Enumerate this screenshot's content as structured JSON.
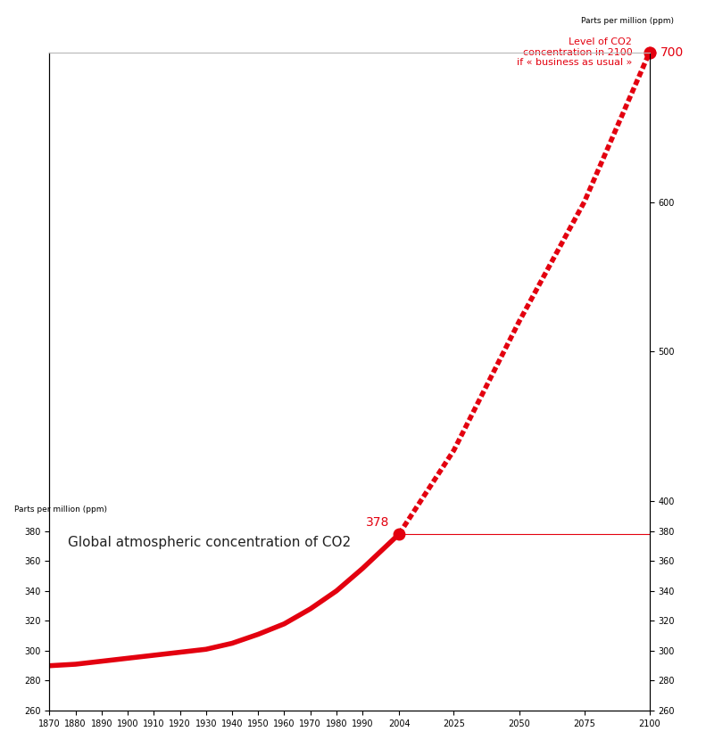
{
  "chart_data": {
    "type": "line",
    "title": "Global atmospheric concentration of CO2",
    "ylabel": "Parts per million (ppm)",
    "y2label": "Parts per million (ppm)",
    "x": [
      1870,
      1880,
      1890,
      1900,
      1910,
      1920,
      1930,
      1940,
      1950,
      1960,
      1970,
      1980,
      1990,
      2004,
      2025,
      2050,
      2075,
      2100
    ],
    "series": [
      {
        "color": "#e3000f",
        "line_style": "solid",
        "values": [
          290,
          291,
          293,
          295,
          297,
          299,
          301,
          305,
          311,
          318,
          328,
          340,
          355,
          378,
          null,
          null,
          null,
          null
        ]
      },
      {
        "color": "#e3000f",
        "line_style": "dashed",
        "values": [
          null,
          null,
          null,
          null,
          null,
          null,
          null,
          null,
          null,
          null,
          null,
          null,
          null,
          378,
          434,
          520,
          600,
          700
        ]
      }
    ],
    "annotations": [
      {
        "text": "378",
        "x": 2004,
        "y": 378
      },
      {
        "text": "700",
        "x": 2100,
        "y": 700
      },
      {
        "text": "Level of CO2\nconcentration in 2100\nif « business as usual »",
        "x": 2100,
        "y": 700
      }
    ],
    "xlim": [
      1870,
      2100
    ],
    "xticks": [
      1870,
      1880,
      1890,
      1900,
      1910,
      1920,
      1930,
      1940,
      1950,
      1960,
      1970,
      1980,
      1990,
      2004,
      2025,
      2050,
      2075,
      2100
    ],
    "ylim": [
      260,
      700
    ],
    "yticks": [
      260,
      280,
      300,
      320,
      340,
      360,
      380
    ],
    "y2lim": [
      260,
      700
    ],
    "y2ticks": [
      260,
      280,
      300,
      320,
      340,
      360,
      380,
      400,
      500,
      600
    ],
    "grid": false
  }
}
